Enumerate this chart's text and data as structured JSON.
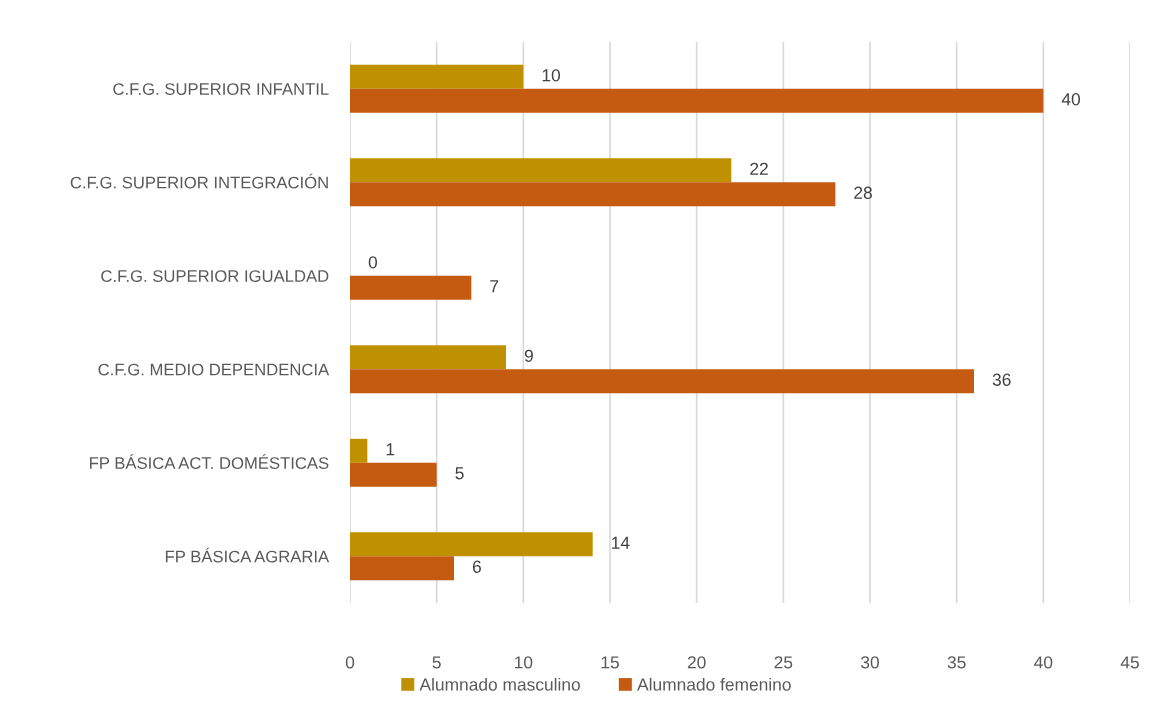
{
  "chart_data": {
    "type": "bar",
    "orientation": "horizontal",
    "categories": [
      "C.F.G. SUPERIOR INFANTIL",
      "C.F.G. SUPERIOR INTEGRACIÓN",
      "C.F.G. SUPERIOR IGUALDAD",
      "C.F.G. MEDIO DEPENDENCIA",
      "FP BÁSICA ACT. DOMÉSTICAS",
      "FP BÁSICA AGRARIA"
    ],
    "series": [
      {
        "name": "Alumnado masculino",
        "color": "#bf9000",
        "values": [
          10,
          22,
          0,
          9,
          1,
          14
        ]
      },
      {
        "name": "Alumnado femenino",
        "color": "#c55a11",
        "values": [
          40,
          28,
          7,
          36,
          5,
          6
        ]
      }
    ],
    "xlim": [
      0,
      45
    ],
    "xticks": [
      0,
      5,
      10,
      15,
      20,
      25,
      30,
      35,
      40,
      45
    ],
    "grid": "x",
    "legend": "bottom",
    "data_labels": true
  }
}
